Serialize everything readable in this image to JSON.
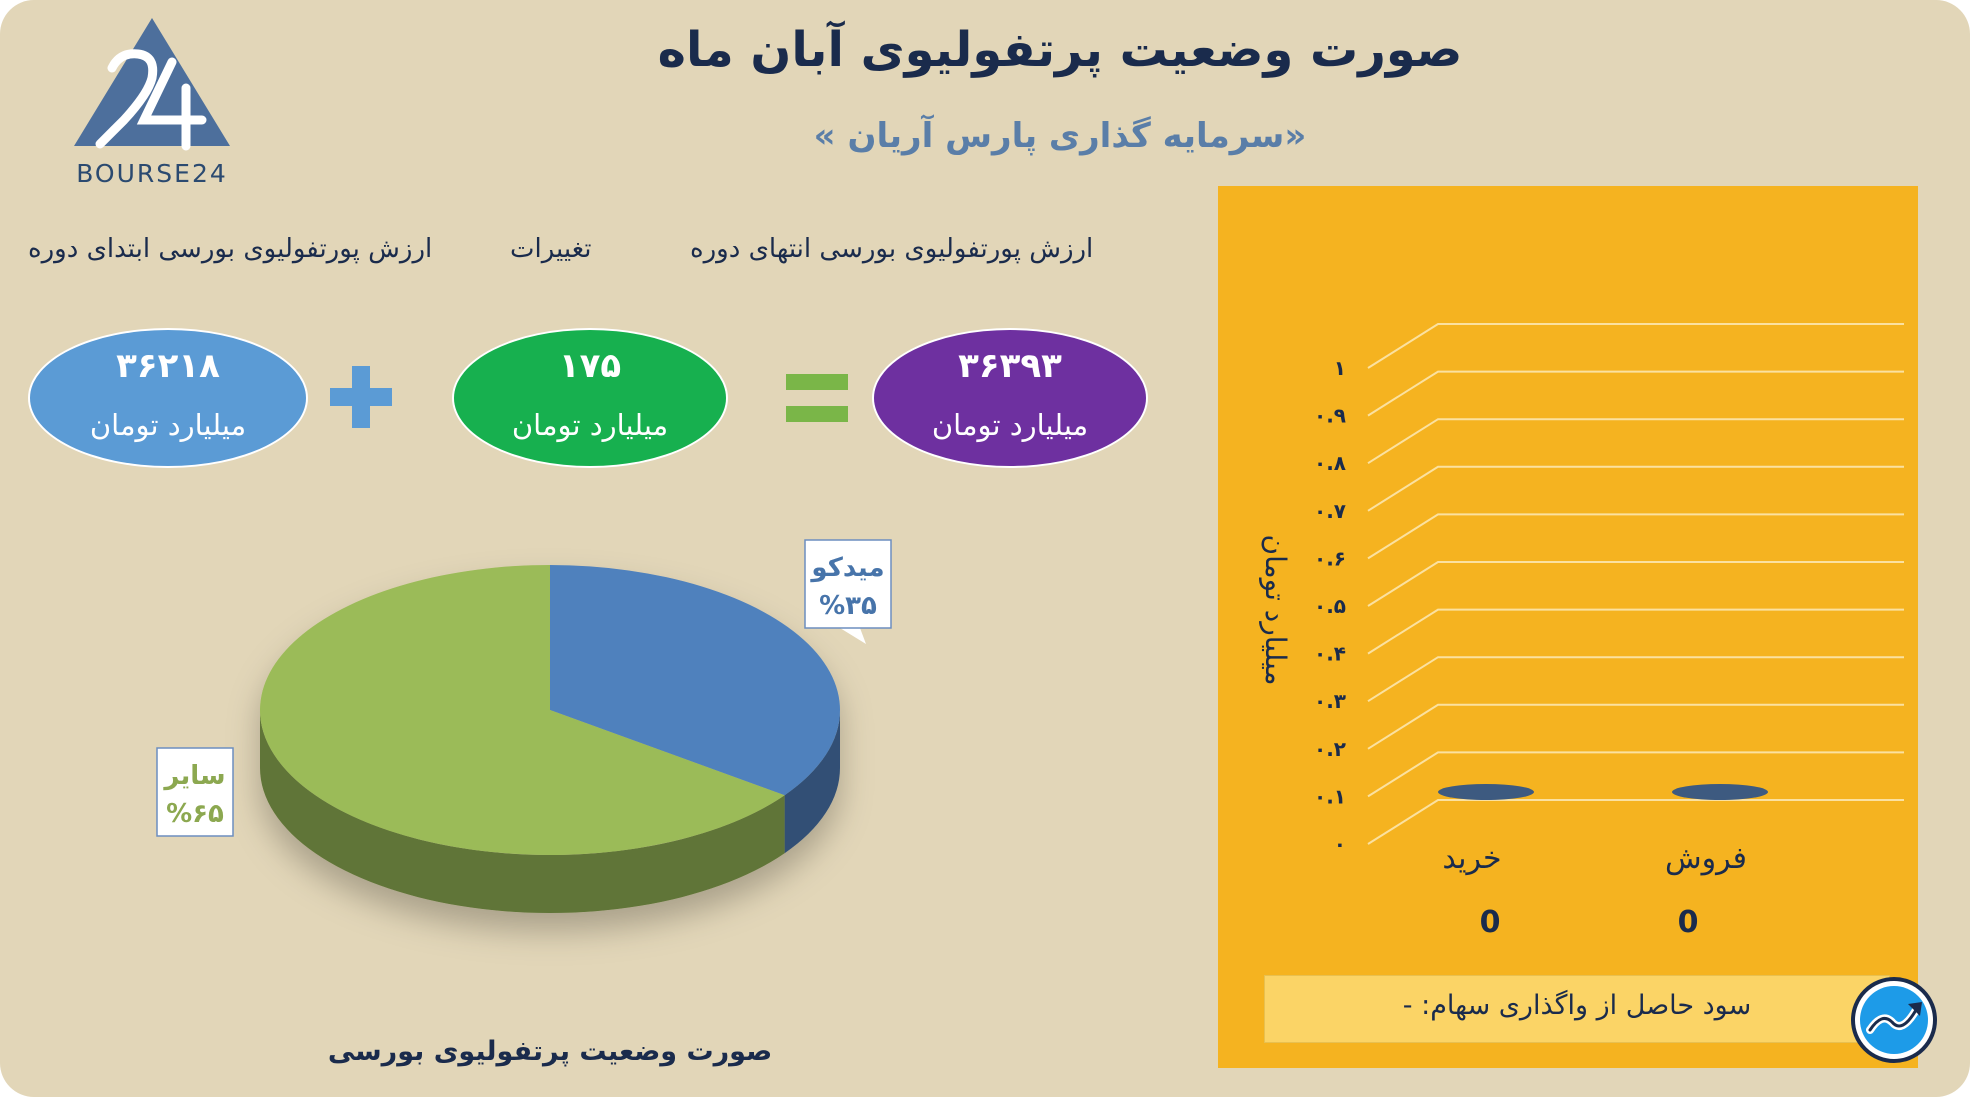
{
  "header": {
    "title": "صورت وضعیت پرتفولیوی آبان ماه",
    "subtitle": "«سرمایه گذاری پارس آریان »",
    "logo_text": "BOURSE24"
  },
  "summary": {
    "end_label": "ارزش پورتفولیوی بورسی انتهای دوره",
    "change_label": "تغییرات",
    "start_label": "ارزش پورتفولیوی بورسی ابتدای دوره",
    "end_value": "۳۶۳۹۳",
    "change_value": "۱۷۵",
    "start_value": "۳۶۲۱۸",
    "unit": "میلیارد تومان",
    "colors": {
      "end": "#6e30a0",
      "change": "#17b04f",
      "start": "#5b9bd5",
      "plus": "#5b9bd5",
      "equals": "#7ab648"
    }
  },
  "chart_data": [
    {
      "type": "pie",
      "title": "صورت وضعیت پرتفولیوی بورسی",
      "slices": [
        {
          "label": "میدکو",
          "percent_label": "%۳۵",
          "value": 35,
          "color": "#4f81bd"
        },
        {
          "label": "سایر",
          "percent_label": "%۶۵",
          "value": 65,
          "color": "#9bbb59"
        }
      ]
    },
    {
      "type": "bar",
      "ylabel": "میلیارد تومان",
      "ylim": [
        0,
        1
      ],
      "yticks": [
        "۰",
        "۰.۱",
        "۰.۲",
        "۰.۳",
        "۰.۴",
        "۰.۵",
        "۰.۶",
        "۰.۷",
        "۰.۸",
        "۰.۹",
        "۱"
      ],
      "categories": [
        "خرید",
        "فروش"
      ],
      "values": [
        0,
        0
      ],
      "value_labels": [
        "0",
        "0"
      ],
      "grid": true,
      "bar_color": "#3d5a80"
    }
  ],
  "footer": {
    "profit_text": "سود حاصل از واگذاری سهام: -"
  }
}
